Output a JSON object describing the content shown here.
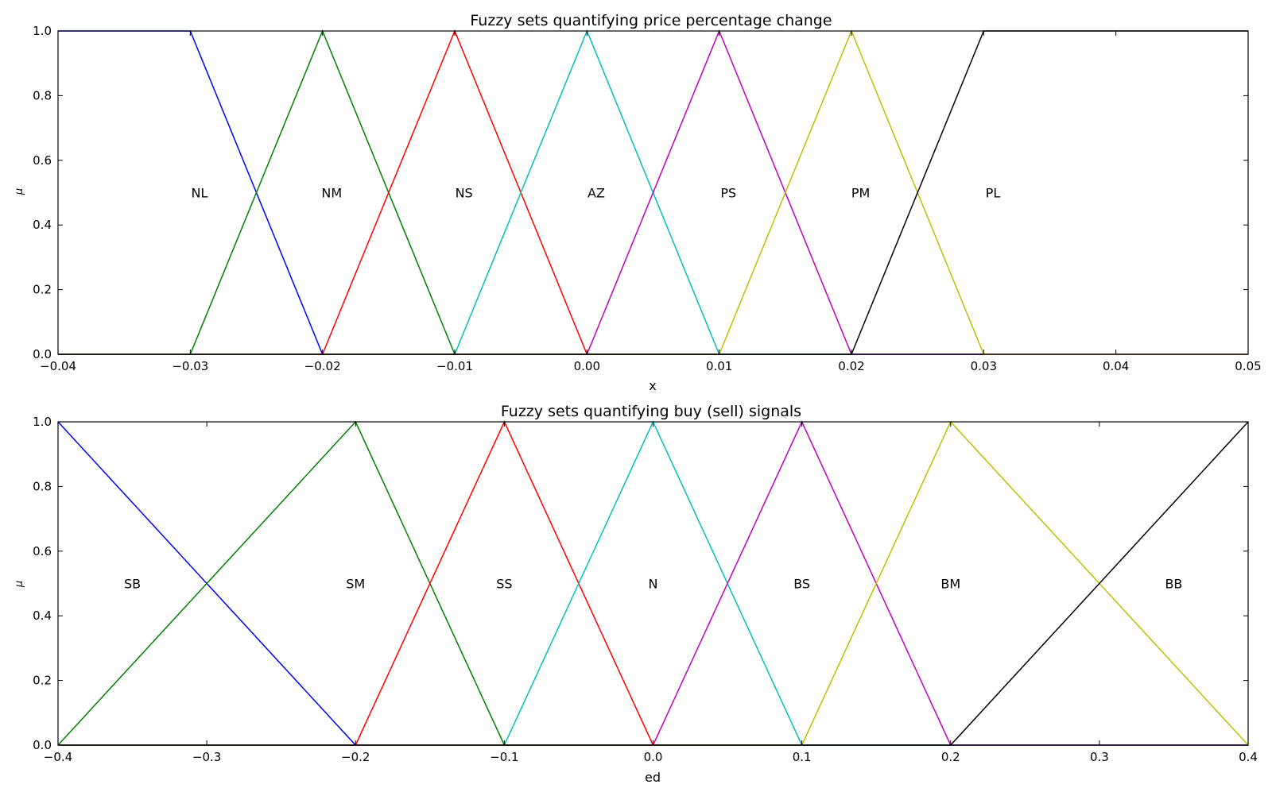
{
  "chart_data": [
    {
      "type": "line",
      "title": "Fuzzy sets quantifying price percentage change",
      "xlabel": "x",
      "ylabel": "μ",
      "xlim": [
        -0.04,
        0.05
      ],
      "ylim": [
        0.0,
        1.0
      ],
      "xticks": [
        "−0.04",
        "−0.03",
        "−0.02",
        "−0.01",
        "0.00",
        "0.01",
        "0.02",
        "0.03",
        "0.04",
        "0.05"
      ],
      "xtick_values": [
        -0.04,
        -0.03,
        -0.02,
        -0.01,
        0.0,
        0.01,
        0.02,
        0.03,
        0.04,
        0.05
      ],
      "yticks": [
        "0.0",
        "0.2",
        "0.4",
        "0.6",
        "0.8",
        "1.0"
      ],
      "ytick_values": [
        0.0,
        0.2,
        0.4,
        0.6,
        0.8,
        1.0
      ],
      "grid": false,
      "series": [
        {
          "name": "NL",
          "color": "#0000ff",
          "x": [
            -0.04,
            -0.03,
            -0.02,
            0.05
          ],
          "y": [
            1.0,
            1.0,
            0.0,
            0.0
          ],
          "label_x": -0.0293,
          "label_y": 0.5
        },
        {
          "name": "NM",
          "color": "#008000",
          "x": [
            -0.04,
            -0.03,
            -0.02,
            -0.01,
            0.05
          ],
          "y": [
            0.0,
            0.0,
            1.0,
            0.0,
            0.0
          ],
          "label_x": -0.0193,
          "label_y": 0.5
        },
        {
          "name": "NS",
          "color": "#ff0000",
          "x": [
            -0.04,
            -0.02,
            -0.01,
            0.0,
            0.05
          ],
          "y": [
            0.0,
            0.0,
            1.0,
            0.0,
            0.0
          ],
          "label_x": -0.0093,
          "label_y": 0.5
        },
        {
          "name": "AZ",
          "color": "#00bfbf",
          "x": [
            -0.04,
            -0.01,
            0.0,
            0.01,
            0.05
          ],
          "y": [
            0.0,
            0.0,
            1.0,
            0.0,
            0.0
          ],
          "label_x": 0.0007,
          "label_y": 0.5
        },
        {
          "name": "PS",
          "color": "#bf00bf",
          "x": [
            -0.04,
            0.0,
            0.01,
            0.02,
            0.05
          ],
          "y": [
            0.0,
            0.0,
            1.0,
            0.0,
            0.0
          ],
          "label_x": 0.0107,
          "label_y": 0.5
        },
        {
          "name": "PM",
          "color": "#bfbf00",
          "x": [
            -0.04,
            0.01,
            0.02,
            0.03,
            0.05
          ],
          "y": [
            0.0,
            0.0,
            1.0,
            0.0,
            0.0
          ],
          "label_x": 0.0207,
          "label_y": 0.5
        },
        {
          "name": "PL",
          "color": "#000000",
          "x": [
            -0.04,
            0.02,
            0.03,
            0.05
          ],
          "y": [
            0.0,
            0.0,
            1.0,
            1.0
          ],
          "label_x": 0.0307,
          "label_y": 0.5
        }
      ]
    },
    {
      "type": "line",
      "title": "Fuzzy sets quantifying buy (sell) signals",
      "xlabel": "ed",
      "ylabel": "μ",
      "xlim": [
        -0.4,
        0.4
      ],
      "ylim": [
        0.0,
        1.0
      ],
      "xticks": [
        "−0.4",
        "−0.3",
        "−0.2",
        "−0.1",
        "0.0",
        "0.1",
        "0.2",
        "0.3",
        "0.4"
      ],
      "xtick_values": [
        -0.4,
        -0.3,
        -0.2,
        -0.1,
        0.0,
        0.1,
        0.2,
        0.3,
        0.4
      ],
      "yticks": [
        "0.0",
        "0.2",
        "0.4",
        "0.6",
        "0.8",
        "1.0"
      ],
      "ytick_values": [
        0.0,
        0.2,
        0.4,
        0.6,
        0.8,
        1.0
      ],
      "grid": false,
      "series": [
        {
          "name": "SB",
          "color": "#0000ff",
          "x": [
            -0.4,
            -0.2,
            0.4
          ],
          "y": [
            1.0,
            0.0,
            0.0
          ],
          "label_x": -0.35,
          "label_y": 0.5
        },
        {
          "name": "SM",
          "color": "#008000",
          "x": [
            -0.4,
            -0.2,
            -0.1,
            0.4
          ],
          "y": [
            0.0,
            1.0,
            0.0,
            0.0
          ],
          "label_x": -0.2,
          "label_y": 0.5
        },
        {
          "name": "SS",
          "color": "#ff0000",
          "x": [
            -0.4,
            -0.2,
            -0.1,
            0.0,
            0.4
          ],
          "y": [
            0.0,
            0.0,
            1.0,
            0.0,
            0.0
          ],
          "label_x": -0.1,
          "label_y": 0.5
        },
        {
          "name": "N",
          "color": "#00bfbf",
          "x": [
            -0.4,
            -0.1,
            0.0,
            0.1,
            0.4
          ],
          "y": [
            0.0,
            0.0,
            1.0,
            0.0,
            0.0
          ],
          "label_x": 0.0,
          "label_y": 0.5
        },
        {
          "name": "BS",
          "color": "#bf00bf",
          "x": [
            -0.4,
            0.0,
            0.1,
            0.2,
            0.4
          ],
          "y": [
            0.0,
            0.0,
            1.0,
            0.0,
            0.0
          ],
          "label_x": 0.1,
          "label_y": 0.5
        },
        {
          "name": "BM",
          "color": "#bfbf00",
          "x": [
            -0.4,
            0.1,
            0.2,
            0.4
          ],
          "y": [
            0.0,
            0.0,
            1.0,
            0.0
          ],
          "label_x": 0.2,
          "label_y": 0.5
        },
        {
          "name": "BB",
          "color": "#000000",
          "x": [
            -0.4,
            0.2,
            0.4
          ],
          "y": [
            0.0,
            0.0,
            1.0
          ],
          "label_x": 0.35,
          "label_y": 0.5
        }
      ]
    }
  ]
}
